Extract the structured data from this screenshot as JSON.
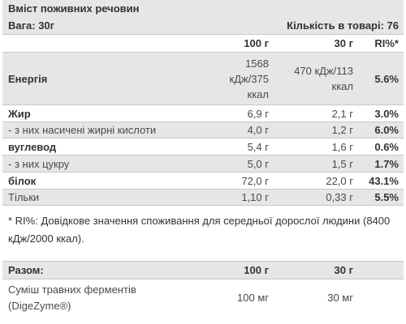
{
  "header": {
    "title": "Вміст поживних речовин",
    "weight": "Вага: 30г",
    "quantity": "Кількість в товарі: 76"
  },
  "columns": {
    "per100": "100 г",
    "per30": "30 г",
    "ri": "RI%*"
  },
  "rows": [
    {
      "label": "Енергія",
      "per100": "1568\nкДж/375\nккал",
      "per30": "470 кДж/113\nккал",
      "ri": "5.6%"
    },
    {
      "label": "Жир",
      "per100": "6,9 г",
      "per30": "2,1 г",
      "ri": "3.0%"
    },
    {
      "label": "- з них насичені жирні кислоти",
      "per100": "4,0 г",
      "per30": "1,2 г",
      "ri": "6.0%"
    },
    {
      "label": "вуглевод",
      "per100": "5,4 г",
      "per30": "1,6 г",
      "ri": "0.6%"
    },
    {
      "label": "- з них цукру",
      "per100": "5,0 г",
      "per30": "1,5 г",
      "ri": "1.7%"
    },
    {
      "label": "білок",
      "per100": "72,0 г",
      "per30": "22,0 г",
      "ri": "43.1%"
    },
    {
      "label": "Тільки",
      "per100": "1,10 г",
      "per30": "0,33 г",
      "ri": "5.5%"
    }
  ],
  "footnote": "* RI%: Довідкове значення споживання для середньої дорослої людини (8400 кДж/2000 ккал).",
  "summary": {
    "header": {
      "label": "Разом:",
      "per100": "100 г",
      "per30": "30 г"
    },
    "rows": [
      {
        "label": "Суміш травних ферментів\n(DigeZyme®)",
        "per100": "100 мг",
        "per30": "30 мг"
      }
    ]
  }
}
